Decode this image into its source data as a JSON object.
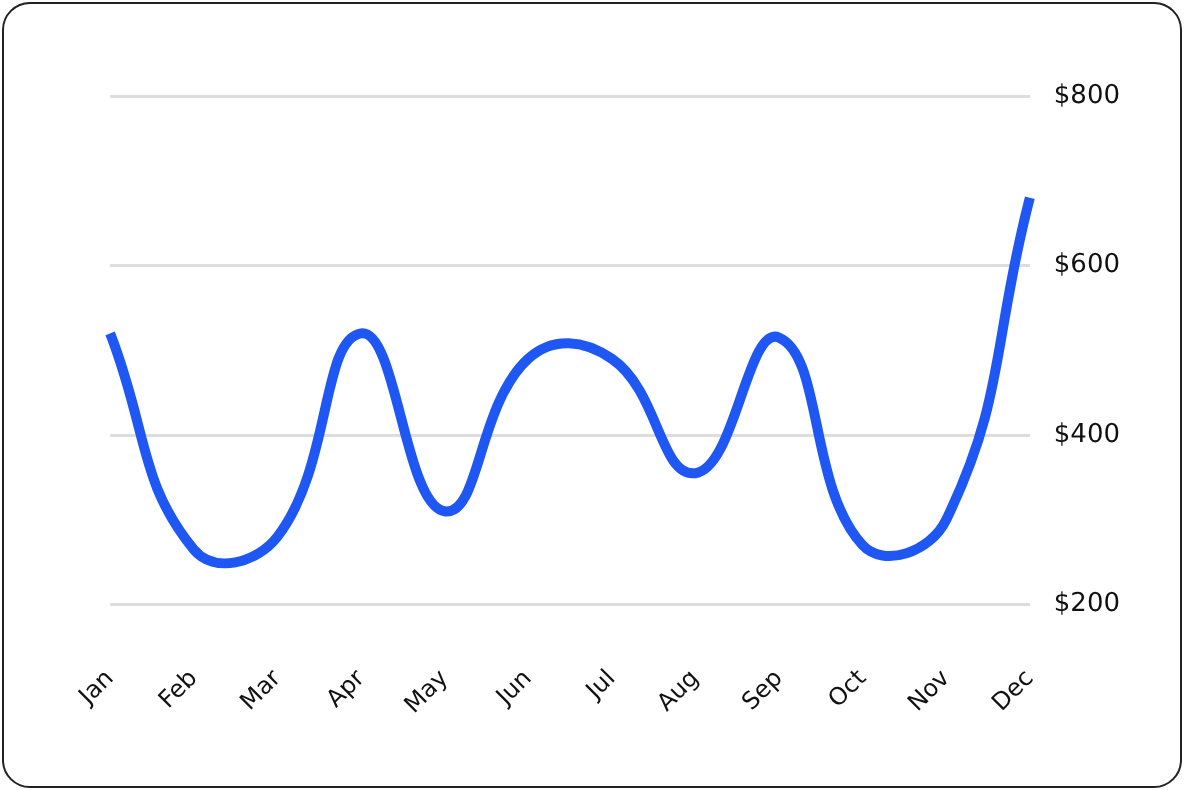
{
  "chart_data": {
    "type": "line",
    "categories": [
      "Jan",
      "Feb",
      "Mar",
      "Apr",
      "May",
      "Jun",
      "Jul",
      "Aug",
      "Sep",
      "Oct",
      "Nov",
      "Dec"
    ],
    "series": [
      {
        "color": "#1f57f5",
        "values": [
          520,
          265,
          280,
          520,
          310,
          490,
          490,
          355,
          515,
          270,
          300,
          680
        ]
      }
    ],
    "ylim": [
      200,
      800
    ],
    "yticks": [
      {
        "value": 200,
        "label": "$200"
      },
      {
        "value": 400,
        "label": "$400"
      },
      {
        "value": 600,
        "label": "$600"
      },
      {
        "value": 800,
        "label": "$800"
      }
    ],
    "grid": "y",
    "legend": false,
    "marker": "none",
    "line_style": "solid"
  }
}
